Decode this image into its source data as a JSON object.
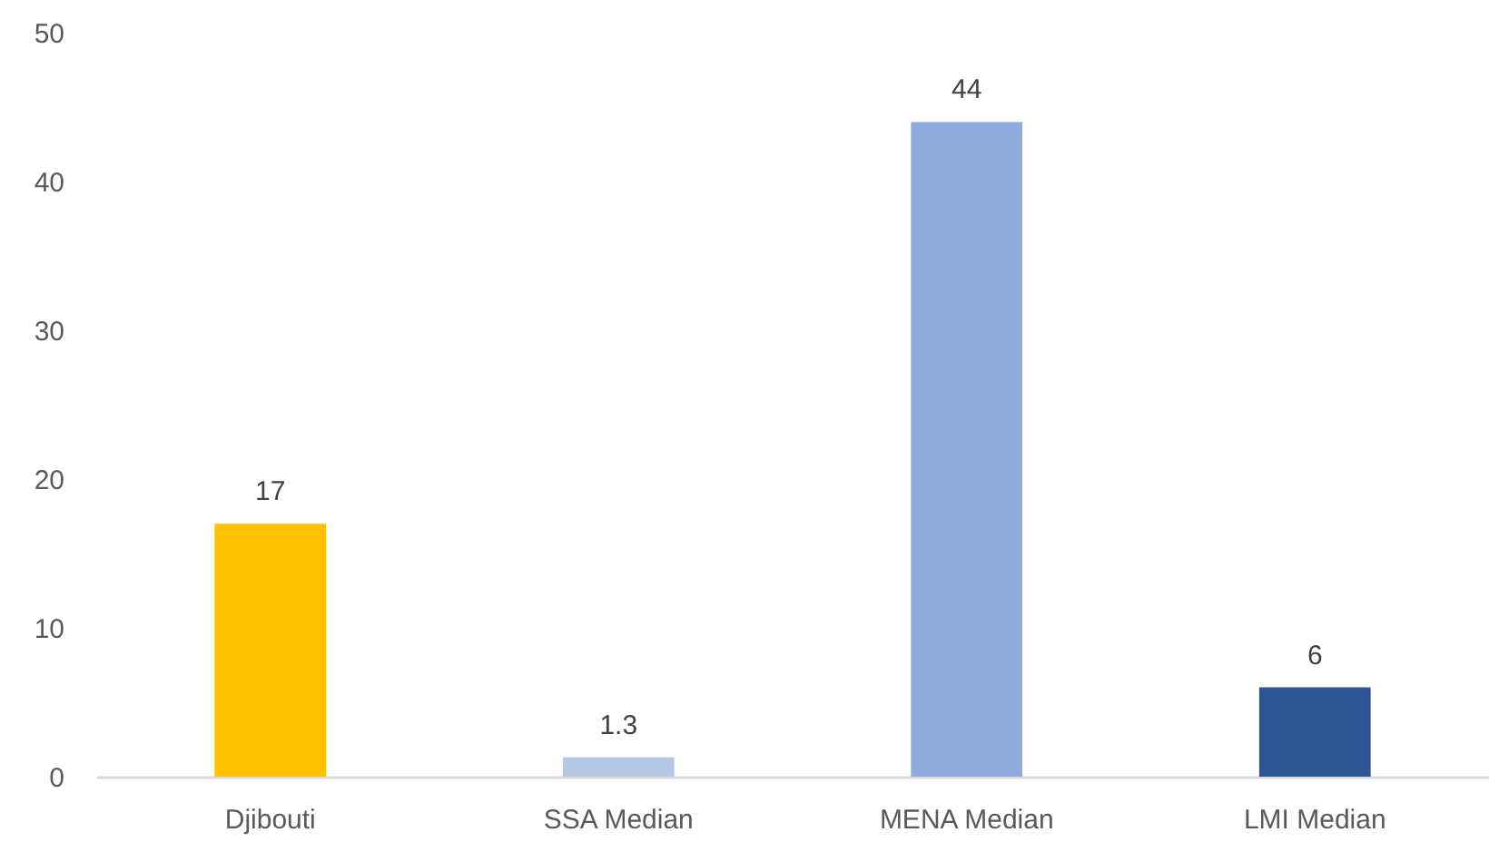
{
  "chart_data": {
    "type": "bar",
    "categories": [
      "Djibouti",
      "SSA Median",
      "MENA Median",
      "LMI Median"
    ],
    "values": [
      17,
      1.3,
      44,
      6
    ],
    "colors": [
      "#ffc000",
      "#b4c7e7",
      "#8faadc",
      "#2f5597"
    ],
    "ylim": [
      0,
      50
    ],
    "yticks": [
      0,
      10,
      20,
      30,
      40,
      50
    ],
    "grid": false,
    "data_labels": true
  }
}
